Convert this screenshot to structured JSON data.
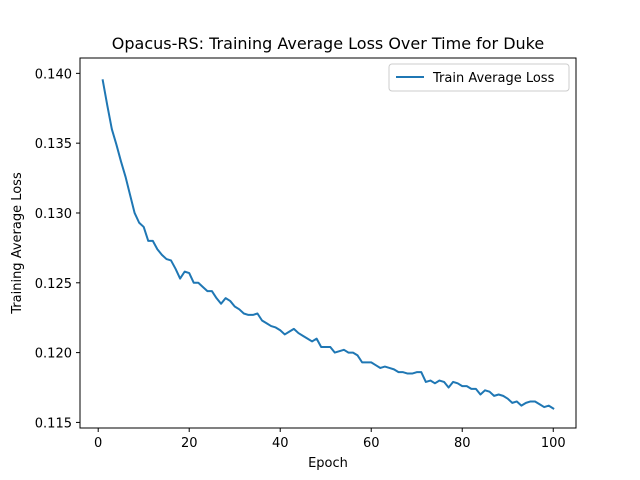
{
  "chart_data": {
    "type": "line",
    "title": "Opacus-RS: Training Average Loss Over Time for Duke",
    "xlabel": "Epoch",
    "ylabel": "Training Average Loss",
    "xlim": [
      -4,
      105
    ],
    "ylim": [
      0.1146,
      0.1411
    ],
    "xticks": [
      0,
      20,
      40,
      60,
      80,
      100
    ],
    "xtick_labels": [
      "0",
      "20",
      "40",
      "60",
      "80",
      "100"
    ],
    "yticks": [
      0.115,
      0.12,
      0.125,
      0.13,
      0.135,
      0.14
    ],
    "ytick_labels": [
      "0.115",
      "0.120",
      "0.125",
      "0.130",
      "0.135",
      "0.140"
    ],
    "grid": false,
    "legend_position": "top-right",
    "series": [
      {
        "name": "Train Average Loss",
        "color": "#1f77b4",
        "x": [
          1,
          2,
          3,
          4,
          5,
          6,
          7,
          8,
          9,
          10,
          11,
          12,
          13,
          14,
          15,
          16,
          17,
          18,
          19,
          20,
          21,
          22,
          23,
          24,
          25,
          26,
          27,
          28,
          29,
          30,
          31,
          32,
          33,
          34,
          35,
          36,
          37,
          38,
          39,
          40,
          41,
          42,
          43,
          44,
          45,
          46,
          47,
          48,
          49,
          50,
          51,
          52,
          53,
          54,
          55,
          56,
          57,
          58,
          59,
          60,
          61,
          62,
          63,
          64,
          65,
          66,
          67,
          68,
          69,
          70,
          71,
          72,
          73,
          74,
          75,
          76,
          77,
          78,
          79,
          80,
          81,
          82,
          83,
          84,
          85,
          86,
          87,
          88,
          89,
          90,
          91,
          92,
          93,
          94,
          95,
          96,
          97,
          98,
          99,
          100
        ],
        "y": [
          0.1395,
          0.1377,
          0.136,
          0.1349,
          0.1337,
          0.1326,
          0.1313,
          0.13,
          0.1293,
          0.129,
          0.128,
          0.128,
          0.1274,
          0.127,
          0.1267,
          0.1266,
          0.126,
          0.1253,
          0.1258,
          0.1257,
          0.125,
          0.125,
          0.1247,
          0.1244,
          0.1244,
          0.1239,
          0.1235,
          0.1239,
          0.1237,
          0.1233,
          0.1231,
          0.1228,
          0.1227,
          0.1227,
          0.1228,
          0.1223,
          0.1221,
          0.1219,
          0.1218,
          0.1216,
          0.1213,
          0.1215,
          0.1217,
          0.1214,
          0.1212,
          0.121,
          0.1208,
          0.121,
          0.1204,
          0.1204,
          0.1204,
          0.12,
          0.1201,
          0.1202,
          0.12,
          0.12,
          0.1198,
          0.1193,
          0.1193,
          0.1193,
          0.1191,
          0.1189,
          0.119,
          0.1189,
          0.1188,
          0.1186,
          0.1186,
          0.1185,
          0.1185,
          0.1186,
          0.1186,
          0.1179,
          0.118,
          0.1178,
          0.118,
          0.1179,
          0.1175,
          0.1179,
          0.1178,
          0.1176,
          0.1176,
          0.1174,
          0.1174,
          0.117,
          0.1173,
          0.1172,
          0.1169,
          0.117,
          0.1169,
          0.1167,
          0.1164,
          0.1165,
          0.1162,
          0.1164,
          0.1165,
          0.1165,
          0.1163,
          0.1161,
          0.1162,
          0.116
        ]
      }
    ]
  }
}
